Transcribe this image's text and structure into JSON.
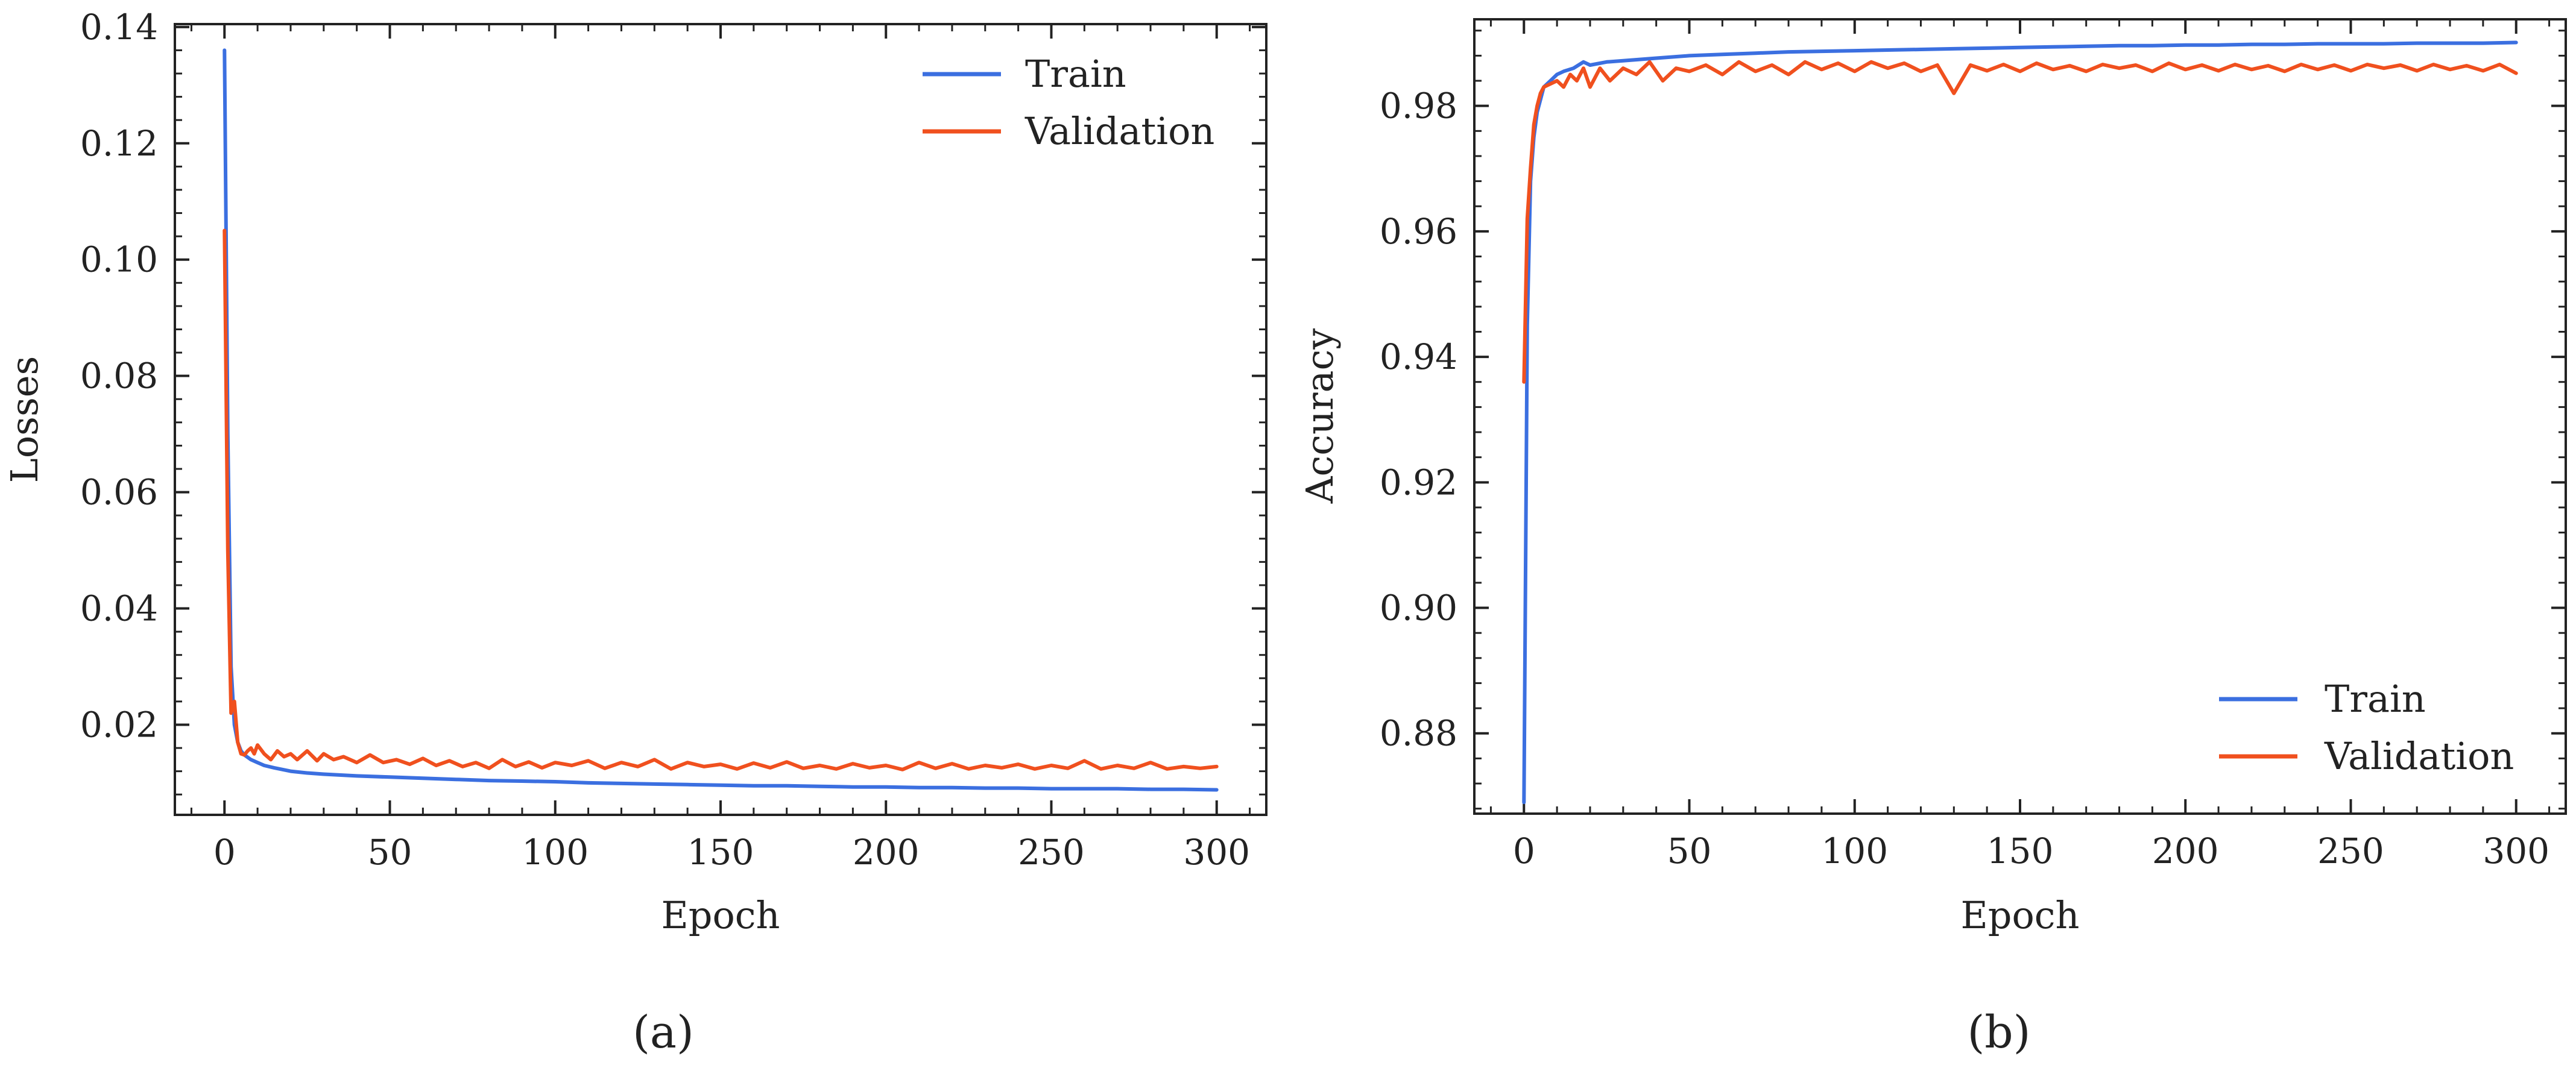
{
  "colors": {
    "train": "#3b6fe0",
    "validation": "#f0501e"
  },
  "chart_data": [
    {
      "type": "line",
      "panel_label": "(a)",
      "title": "",
      "xlabel": "Epoch",
      "ylabel": "Losses",
      "xlim": [
        -15,
        315
      ],
      "ylim": [
        0.0045,
        0.1405
      ],
      "xticks": [
        0,
        50,
        100,
        150,
        200,
        250,
        300
      ],
      "xtick_labels": [
        "0",
        "50",
        "100",
        "150",
        "200",
        "250",
        "300"
      ],
      "yticks": [
        0.02,
        0.04,
        0.06,
        0.08,
        0.1,
        0.12,
        0.14
      ],
      "ytick_labels": [
        "0.02",
        "0.04",
        "0.06",
        "0.08",
        "0.10",
        "0.12",
        "0.14"
      ],
      "legend_position": "top-right",
      "grid": false,
      "series": [
        {
          "name": "Train",
          "color_key": "train",
          "x": [
            0,
            1,
            2,
            3,
            4,
            5,
            6,
            8,
            10,
            12,
            15,
            20,
            25,
            30,
            40,
            50,
            60,
            70,
            80,
            90,
            100,
            110,
            120,
            130,
            140,
            150,
            160,
            170,
            180,
            190,
            200,
            210,
            220,
            230,
            240,
            250,
            260,
            270,
            280,
            290,
            300
          ],
          "values": [
            0.136,
            0.07,
            0.03,
            0.02,
            0.017,
            0.0155,
            0.0148,
            0.014,
            0.0135,
            0.013,
            0.0126,
            0.012,
            0.0117,
            0.0115,
            0.0112,
            0.011,
            0.0108,
            0.0106,
            0.0104,
            0.0103,
            0.0102,
            0.01,
            0.0099,
            0.0098,
            0.0097,
            0.0096,
            0.0095,
            0.0095,
            0.0094,
            0.0093,
            0.0093,
            0.0092,
            0.0092,
            0.0091,
            0.0091,
            0.009,
            0.009,
            0.009,
            0.0089,
            0.0089,
            0.0088
          ]
        },
        {
          "name": "Validation",
          "color_key": "validation",
          "x": [
            0,
            1,
            2,
            3,
            4,
            5,
            6,
            7,
            8,
            9,
            10,
            12,
            14,
            16,
            18,
            20,
            22,
            25,
            28,
            30,
            33,
            36,
            40,
            44,
            48,
            52,
            56,
            60,
            64,
            68,
            72,
            76,
            80,
            84,
            88,
            92,
            96,
            100,
            105,
            110,
            115,
            120,
            125,
            130,
            135,
            140,
            145,
            150,
            155,
            160,
            165,
            170,
            175,
            180,
            185,
            190,
            195,
            200,
            205,
            210,
            215,
            220,
            225,
            230,
            235,
            240,
            245,
            250,
            255,
            260,
            265,
            270,
            275,
            280,
            285,
            290,
            295,
            300
          ],
          "values": [
            0.105,
            0.05,
            0.022,
            0.024,
            0.017,
            0.015,
            0.0148,
            0.0155,
            0.016,
            0.015,
            0.0165,
            0.015,
            0.014,
            0.0155,
            0.0145,
            0.015,
            0.014,
            0.0155,
            0.0138,
            0.015,
            0.014,
            0.0145,
            0.0135,
            0.0148,
            0.0135,
            0.014,
            0.0132,
            0.0142,
            0.013,
            0.0138,
            0.0128,
            0.0135,
            0.0125,
            0.014,
            0.0128,
            0.0136,
            0.0126,
            0.0135,
            0.013,
            0.0138,
            0.0125,
            0.0135,
            0.0128,
            0.014,
            0.0124,
            0.0135,
            0.0128,
            0.0132,
            0.0124,
            0.0134,
            0.0126,
            0.0136,
            0.0125,
            0.013,
            0.0124,
            0.0133,
            0.0126,
            0.013,
            0.0123,
            0.0135,
            0.0125,
            0.0133,
            0.0124,
            0.013,
            0.0126,
            0.0132,
            0.0124,
            0.013,
            0.0125,
            0.0138,
            0.0124,
            0.013,
            0.0125,
            0.0135,
            0.0124,
            0.0128,
            0.0125,
            0.0128
          ]
        }
      ]
    },
    {
      "type": "line",
      "panel_label": "(b)",
      "title": "",
      "xlabel": "Epoch",
      "ylabel": "Accuracy",
      "xlim": [
        -15,
        315
      ],
      "ylim": [
        0.8672,
        0.9938
      ],
      "xticks": [
        0,
        50,
        100,
        150,
        200,
        250,
        300
      ],
      "xtick_labels": [
        "0",
        "50",
        "100",
        "150",
        "200",
        "250",
        "300"
      ],
      "yticks": [
        0.88,
        0.9,
        0.92,
        0.94,
        0.96,
        0.98
      ],
      "ytick_labels": [
        "0.88",
        "0.90",
        "0.92",
        "0.94",
        "0.96",
        "0.98"
      ],
      "legend_position": "bottom-right",
      "grid": false,
      "series": [
        {
          "name": "Train",
          "color_key": "train",
          "x": [
            0,
            1,
            2,
            3,
            4,
            5,
            6,
            8,
            10,
            12,
            15,
            18,
            20,
            25,
            30,
            40,
            50,
            60,
            70,
            80,
            90,
            100,
            110,
            120,
            130,
            140,
            150,
            160,
            170,
            180,
            190,
            200,
            210,
            220,
            230,
            240,
            250,
            260,
            270,
            280,
            290,
            300
          ],
          "values": [
            0.869,
            0.945,
            0.968,
            0.975,
            0.979,
            0.981,
            0.983,
            0.984,
            0.985,
            0.9855,
            0.986,
            0.987,
            0.9865,
            0.987,
            0.9872,
            0.9876,
            0.988,
            0.9882,
            0.9884,
            0.9886,
            0.9887,
            0.9888,
            0.9889,
            0.989,
            0.9891,
            0.9892,
            0.9893,
            0.9894,
            0.9895,
            0.9896,
            0.9896,
            0.9897,
            0.9897,
            0.9898,
            0.9898,
            0.9899,
            0.9899,
            0.9899,
            0.99,
            0.99,
            0.99,
            0.9901
          ]
        },
        {
          "name": "Validation",
          "color_key": "validation",
          "x": [
            0,
            1,
            2,
            3,
            4,
            5,
            6,
            8,
            10,
            12,
            14,
            16,
            18,
            20,
            23,
            26,
            30,
            34,
            38,
            42,
            46,
            50,
            55,
            60,
            65,
            70,
            75,
            80,
            85,
            90,
            95,
            100,
            105,
            110,
            115,
            120,
            125,
            130,
            135,
            140,
            145,
            150,
            155,
            160,
            165,
            170,
            175,
            180,
            185,
            190,
            195,
            200,
            205,
            210,
            215,
            220,
            225,
            230,
            235,
            240,
            245,
            250,
            255,
            260,
            265,
            270,
            275,
            280,
            285,
            290,
            295,
            300
          ],
          "values": [
            0.936,
            0.962,
            0.97,
            0.977,
            0.98,
            0.982,
            0.983,
            0.9835,
            0.984,
            0.983,
            0.985,
            0.984,
            0.986,
            0.983,
            0.986,
            0.984,
            0.986,
            0.985,
            0.987,
            0.984,
            0.986,
            0.9855,
            0.9865,
            0.985,
            0.987,
            0.9855,
            0.9865,
            0.985,
            0.987,
            0.9858,
            0.9868,
            0.9855,
            0.987,
            0.986,
            0.9868,
            0.9855,
            0.9865,
            0.982,
            0.9865,
            0.9856,
            0.9866,
            0.9855,
            0.9868,
            0.9858,
            0.9864,
            0.9855,
            0.9866,
            0.986,
            0.9865,
            0.9855,
            0.9868,
            0.9858,
            0.9865,
            0.9856,
            0.9866,
            0.9858,
            0.9864,
            0.9855,
            0.9866,
            0.9858,
            0.9865,
            0.9856,
            0.9866,
            0.986,
            0.9865,
            0.9856,
            0.9866,
            0.9858,
            0.9864,
            0.9856,
            0.9866,
            0.9852
          ]
        }
      ]
    }
  ]
}
